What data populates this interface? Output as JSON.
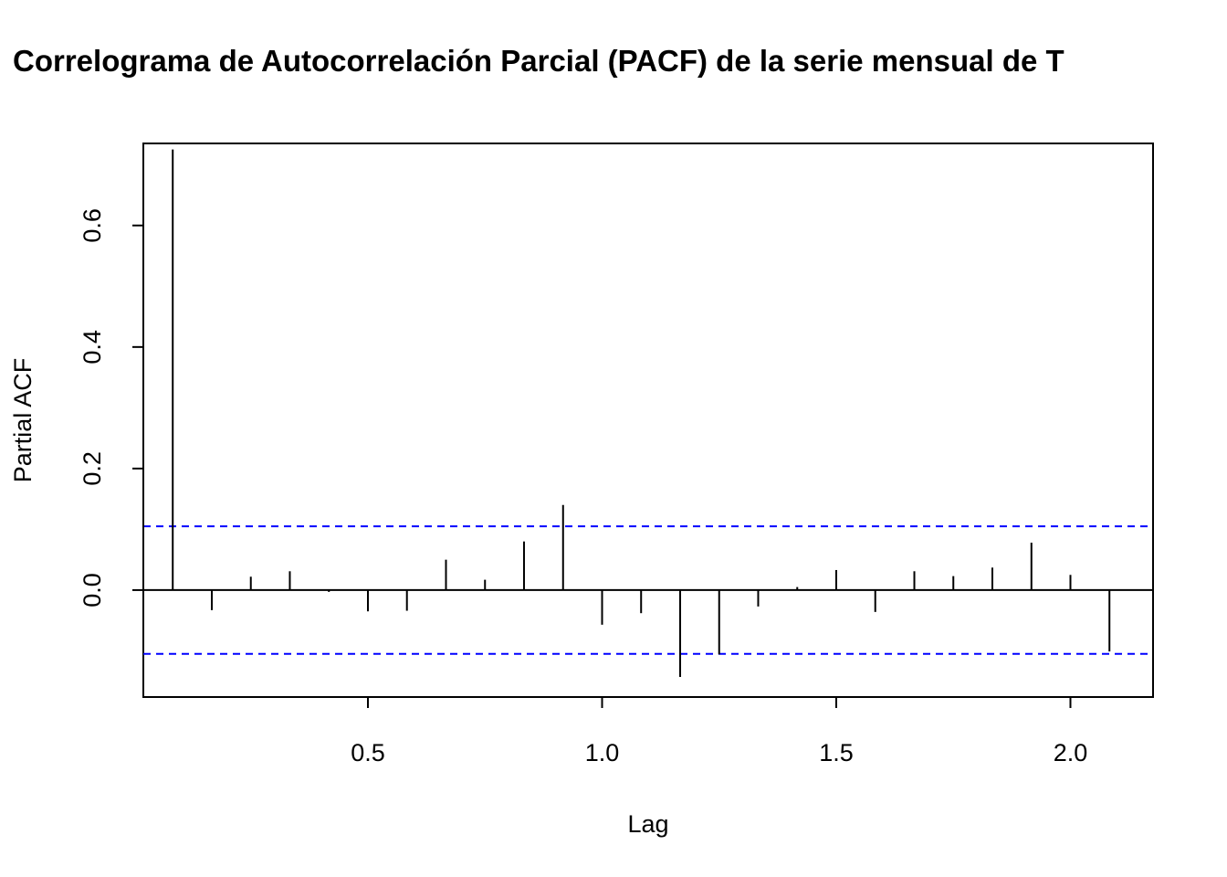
{
  "chart_data": {
    "type": "bar",
    "title": "Correlograma de Autocorrelación Parcial (PACF) de la serie mensual de T",
    "xlabel": "Lag",
    "ylabel": "Partial ACF",
    "xlim": [
      0.0205,
      2.1764
    ],
    "ylim": [
      -0.176,
      0.735
    ],
    "x_ticks": [
      0.5,
      1.0,
      1.5,
      2.0
    ],
    "x_tick_labels": [
      "0.5",
      "1.0",
      "1.5",
      "2.0"
    ],
    "y_ticks": [
      0.0,
      0.2,
      0.4,
      0.6
    ],
    "y_tick_labels": [
      "0.0",
      "0.2",
      "0.4",
      "0.6"
    ],
    "grid": false,
    "confidence_band": {
      "upper": 0.105,
      "lower": -0.105,
      "color": "#0000ff",
      "style": "dashed"
    },
    "zero_line": true,
    "series": [
      {
        "x": [
          0.0833,
          0.1667,
          0.25,
          0.3333,
          0.4167,
          0.5,
          0.5833,
          0.6667,
          0.75,
          0.8333,
          0.9167,
          1.0,
          1.0833,
          1.1667,
          1.25,
          1.3333,
          1.4167,
          1.5,
          1.5833,
          1.6667,
          1.75,
          1.8333,
          1.9167,
          2.0,
          2.0833
        ],
        "values": [
          0.725,
          -0.033,
          0.022,
          0.031,
          -0.003,
          -0.035,
          -0.034,
          0.05,
          0.017,
          0.08,
          0.14,
          -0.057,
          -0.038,
          -0.143,
          -0.106,
          -0.027,
          0.005,
          0.033,
          -0.036,
          0.031,
          0.023,
          0.037,
          0.078,
          0.025,
          -0.101
        ]
      }
    ]
  }
}
